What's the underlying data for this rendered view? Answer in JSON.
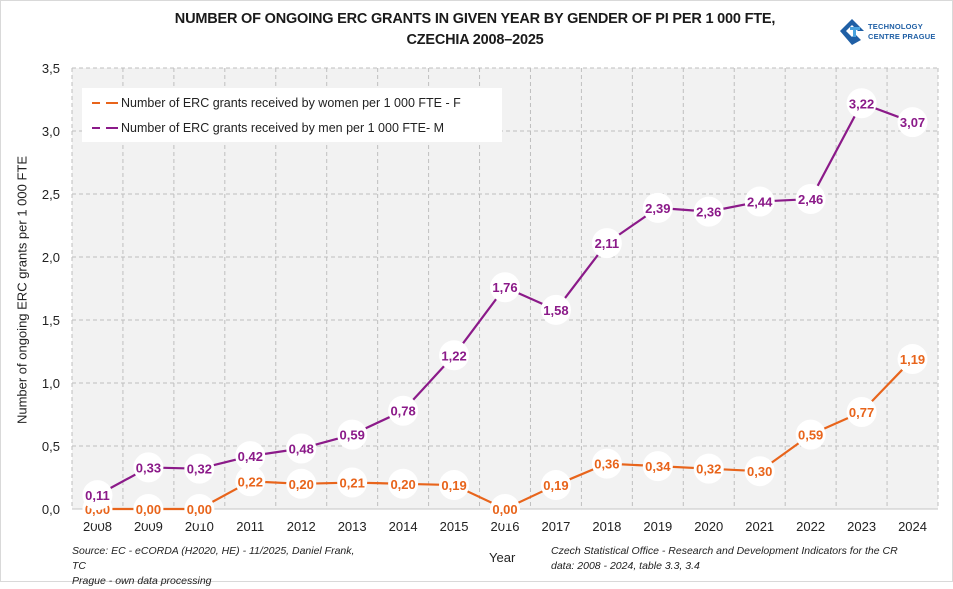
{
  "chart_data": {
    "type": "line",
    "title": "NUMBER OF ONGOING ERC GRANTS IN GIVEN YEAR BY GENDER OF PI PER 1 000 FTE,",
    "subtitle": "CZECHIA 2008–2025",
    "xlabel": "Year",
    "ylabel": "Number of ongoing ERC grants per 1 000 FTE",
    "ylim": [
      0,
      3.5
    ],
    "yticks": [
      0,
      0.5,
      1.0,
      1.5,
      2.0,
      2.5,
      3.0,
      3.5
    ],
    "ytick_labels": [
      "0,0",
      "0,5",
      "1,0",
      "1,5",
      "2,0",
      "2,5",
      "3,0",
      "3,5"
    ],
    "grid": true,
    "legend_position": "top-left",
    "decimal_separator": ",",
    "categories": [
      "2008",
      "2009",
      "2010",
      "2011",
      "2012",
      "2013",
      "2014",
      "2015",
      "2016",
      "2017",
      "2018",
      "2019",
      "2020",
      "2021",
      "2022",
      "2023",
      "2024"
    ],
    "series": [
      {
        "name": "Number of ERC grants received by women per 1 000 FTE - F",
        "color": "#e8641b",
        "values": [
          0.0,
          0.0,
          0.0,
          0.22,
          0.2,
          0.21,
          0.2,
          0.19,
          0.0,
          0.19,
          0.36,
          0.34,
          0.32,
          0.3,
          0.59,
          0.77,
          1.19
        ]
      },
      {
        "name": "Number of ERC grants received by men per 1 000 FTE- M",
        "color": "#8b1a89",
        "values": [
          0.11,
          0.33,
          0.32,
          0.42,
          0.48,
          0.59,
          0.78,
          1.22,
          1.76,
          1.58,
          2.11,
          2.39,
          2.36,
          2.44,
          2.46,
          3.22,
          3.07
        ]
      }
    ]
  },
  "header": {
    "title_line1": "NUMBER OF ONGOING ERC GRANTS IN GIVEN YEAR BY GENDER OF PI PER 1 000 FTE,",
    "title_line2": "CZECHIA 2008–2025"
  },
  "logo": {
    "line1": "TECHNOLOGY",
    "line2": "CENTRE PRAGUE",
    "color": "#1f5fa5"
  },
  "legend": {
    "items": [
      {
        "label": "Number of ERC grants received by women per 1 000 FTE - F",
        "color": "#e8641b"
      },
      {
        "label": "Number of ERC grants received by men per 1 000 FTE- M",
        "color": "#8b1a89"
      }
    ]
  },
  "footer": {
    "source_left_line1": "Source: EC - eCORDA (H2020, HE) - 11/2025,  Daniel Frank, TC",
    "source_left_line2": "Prague - own data processing",
    "xlabel": "Year",
    "source_right_line1": "Czech Statistical Office - Research and Development  Indicators for the CR",
    "source_right_line2": "data: 2008 - 2024, table 3.3, 3.4"
  }
}
